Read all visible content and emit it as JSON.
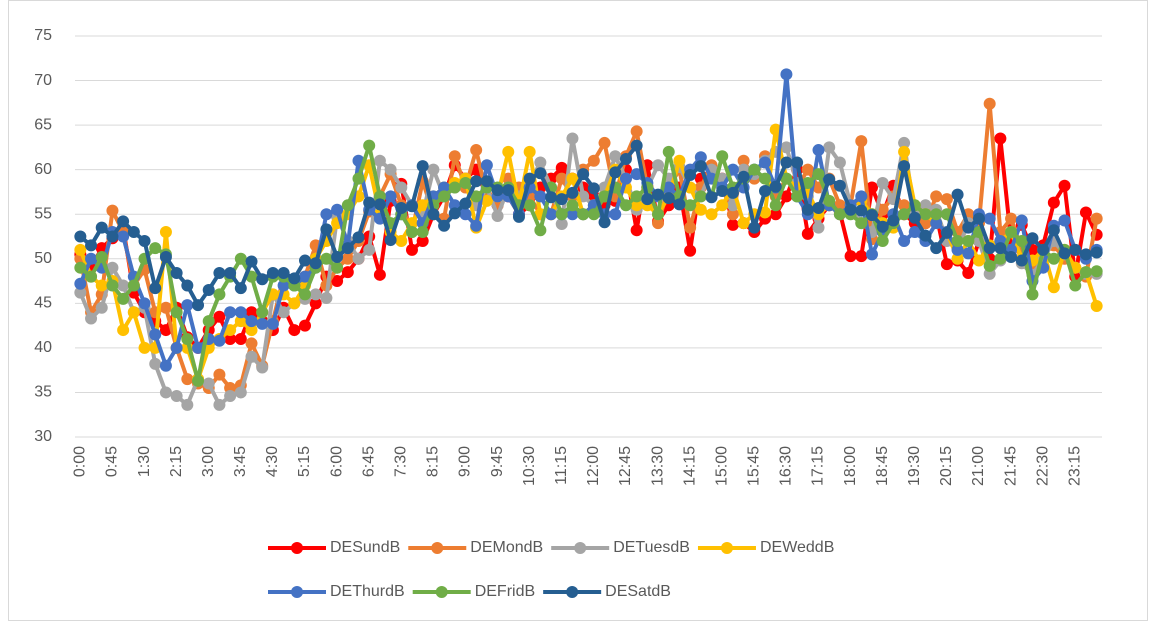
{
  "chart_data": {
    "type": "line",
    "categories": [
      "0:00",
      null,
      null,
      "0:45",
      null,
      null,
      "1:30",
      null,
      null,
      "2:15",
      null,
      null,
      "3:00",
      null,
      null,
      "3:45",
      null,
      null,
      "4:30",
      null,
      null,
      "5:15",
      null,
      null,
      "6:00",
      null,
      null,
      "6:45",
      null,
      null,
      "7:30",
      null,
      null,
      "8:15",
      null,
      null,
      "9:00",
      null,
      null,
      "9:45",
      null,
      null,
      "10:30",
      null,
      null,
      "11:15",
      null,
      null,
      "12:00",
      null,
      null,
      "12:45",
      null,
      null,
      "13:30",
      null,
      null,
      "14:15",
      null,
      null,
      "15:00",
      null,
      null,
      "15:45",
      null,
      null,
      "16:30",
      null,
      null,
      "17:15",
      null,
      null,
      "18:00",
      null,
      null,
      "18:45",
      null,
      null,
      "19:30",
      null,
      null,
      "20:15",
      null,
      null,
      "21:00",
      null,
      null,
      "21:45",
      null,
      null,
      "22:30",
      null,
      null,
      "23:15",
      null,
      null
    ],
    "series": [
      {
        "name": "DESundB",
        "color": "#ff0000",
        "values": [
          50.5,
          49.0,
          51.2,
          52.3,
          53.5,
          46.2,
          44.0,
          43.0,
          42.0,
          44.5,
          41.2,
          40.0,
          42.0,
          43.5,
          41.0,
          41.0,
          44.0,
          43.0,
          42.0,
          44.5,
          42.0,
          42.5,
          45.0,
          48.0,
          47.5,
          48.5,
          50.0,
          52.5,
          48.2,
          56.5,
          58.4,
          51.0,
          52.0,
          55.0,
          57.0,
          60.5,
          59.0,
          60.0,
          57.0,
          56.0,
          57.0,
          55.0,
          56.0,
          58.0,
          59.0,
          60.2,
          59.0,
          58.0,
          57.0,
          56.0,
          56.5,
          60.0,
          53.2,
          60.5,
          54.2,
          56.0,
          58.0,
          50.9,
          59.0,
          60.0,
          59.0,
          53.8,
          54.0,
          53.0,
          54.5,
          55.0,
          57.0,
          60.0,
          52.8,
          54.5,
          56.0,
          55.2,
          50.3,
          50.3,
          58.0,
          55.0,
          58.2,
          55.0,
          54.0,
          54.0,
          55.0,
          49.4,
          49.8,
          48.4,
          52.0,
          50.0,
          63.5,
          52.0,
          53.8,
          51.0,
          51.5,
          56.3,
          58.2,
          48.0,
          55.2,
          52.7
        ]
      },
      {
        "name": "DEMondB",
        "color": "#ed7d31",
        "values": [
          50.0,
          44.0,
          46.0,
          55.4,
          53.0,
          47.0,
          48.8,
          44.0,
          44.5,
          40.0,
          36.5,
          36.0,
          35.5,
          37.0,
          35.5,
          35.8,
          40.5,
          38.0,
          43.0,
          48.0,
          47.5,
          48.0,
          51.5,
          47.0,
          49.0,
          50.0,
          52.0,
          55.3,
          57.0,
          59.5,
          56.0,
          53.0,
          58.7,
          55.0,
          54.5,
          61.5,
          58.0,
          62.2,
          57.0,
          56.0,
          59.0,
          58.0,
          57.0,
          55.0,
          55.0,
          59.0,
          57.0,
          60.0,
          61.0,
          63.0,
          57.0,
          61.5,
          64.3,
          58.0,
          54.0,
          58.0,
          60.0,
          53.5,
          58.0,
          60.5,
          58.0,
          55.0,
          61.0,
          59.0,
          61.5,
          57.0,
          59.0,
          58.0,
          60.0,
          58.0,
          59.0,
          56.0,
          56.0,
          63.2,
          52.2,
          55.5,
          57.0,
          56.0,
          55.0,
          54.0,
          57.0,
          56.7,
          53.0,
          55.0,
          54.0,
          67.4,
          53.0,
          54.5,
          51.0,
          49.0,
          50.5,
          51.5,
          50.0,
          49.0,
          48.0,
          54.5
        ]
      },
      {
        "name": "DETuesdB",
        "color": "#a5a5a5",
        "values": [
          46.2,
          43.3,
          44.5,
          49.0,
          47.0,
          44.0,
          44.5,
          38.2,
          35.0,
          34.6,
          33.6,
          36.5,
          36.0,
          33.6,
          34.6,
          35.0,
          39.0,
          37.8,
          46.0,
          44.0,
          45.0,
          45.5,
          46.0,
          45.6,
          54.7,
          52.0,
          50.0,
          51.0,
          61.0,
          60.0,
          58.0,
          56.0,
          55.0,
          60.0,
          57.0,
          58.0,
          59.0,
          56.0,
          58.0,
          54.8,
          58.0,
          57.0,
          58.5,
          60.8,
          58.0,
          53.9,
          63.5,
          57.0,
          56.0,
          58.0,
          61.5,
          59.0,
          55.5,
          58.0,
          60.5,
          59.0,
          60.3,
          58.0,
          57.0,
          60.0,
          59.0,
          56.0,
          60.0,
          59.5,
          61.0,
          62.0,
          62.5,
          58.5,
          57.0,
          53.5,
          62.5,
          60.8,
          56.0,
          54.0,
          53.0,
          58.5,
          56.7,
          63.0,
          55.0,
          56.0,
          55.5,
          52.0,
          51.0,
          54.0,
          52.0,
          48.3,
          49.8,
          51.0,
          49.5,
          48.2,
          50.0,
          52.0,
          50.5,
          49.0,
          48.3,
          48.3
        ]
      },
      {
        "name": "DEWeddB",
        "color": "#ffc000",
        "values": [
          51.0,
          48.0,
          47.0,
          47.5,
          42.0,
          44.0,
          40.0,
          40.0,
          53.0,
          40.0,
          40.0,
          36.5,
          40.0,
          41.0,
          42.0,
          43.0,
          42.0,
          44.0,
          46.0,
          46.0,
          45.0,
          47.0,
          50.0,
          52.0,
          54.0,
          55.0,
          57.0,
          60.5,
          55.0,
          53.0,
          52.0,
          54.0,
          56.0,
          57.0,
          58.0,
          58.5,
          59.0,
          53.5,
          56.5,
          57.0,
          62.0,
          56.0,
          62.0,
          55.0,
          55.0,
          57.0,
          59.0,
          55.0,
          56.0,
          57.0,
          60.0,
          58.0,
          56.0,
          56.0,
          55.0,
          57.0,
          61.0,
          58.0,
          55.5,
          55.0,
          56.0,
          58.0,
          54.0,
          55.0,
          55.2,
          64.5,
          59.0,
          58.0,
          57.5,
          55.0,
          56.0,
          55.0,
          56.0,
          56.5,
          55.0,
          54.0,
          53.5,
          62.0,
          56.0,
          55.0,
          54.0,
          53.0,
          50.0,
          52.0,
          49.8,
          51.5,
          52.0,
          53.0,
          50.0,
          49.8,
          51.0,
          46.8,
          51.0,
          49.0,
          48.5,
          44.7
        ]
      },
      {
        "name": "DEThurdB",
        "color": "#4472c4",
        "values": [
          47.2,
          50.0,
          49.0,
          53.0,
          52.5,
          48.0,
          45.0,
          41.5,
          38.0,
          40.0,
          44.8,
          40.0,
          41.0,
          40.8,
          44.0,
          44.0,
          43.0,
          42.7,
          42.7,
          47.0,
          47.0,
          48.0,
          49.0,
          55.0,
          55.5,
          51.5,
          61.0,
          55.5,
          54.5,
          57.0,
          55.0,
          56.0,
          54.0,
          57.0,
          58.0,
          56.0,
          55.0,
          53.7,
          60.5,
          57.0,
          57.0,
          55.0,
          58.0,
          57.0,
          55.0,
          55.0,
          55.0,
          55.0,
          56.0,
          55.0,
          55.0,
          59.0,
          59.5,
          58.5,
          57.0,
          58.0,
          57.0,
          60.0,
          61.4,
          59.0,
          58.0,
          60.0,
          58.0,
          60.0,
          60.8,
          58.0,
          70.7,
          57.0,
          55.0,
          62.2,
          56.0,
          55.0,
          56.0,
          57.0,
          50.5,
          53.0,
          55.0,
          52.0,
          53.0,
          52.0,
          54.0,
          53.0,
          51.0,
          50.6,
          55.0,
          54.5,
          52.0,
          51.0,
          54.3,
          47.5,
          49.0,
          53.7,
          54.3,
          51.0,
          50.0,
          51.0
        ]
      },
      {
        "name": "DEFridB",
        "color": "#70ad47",
        "values": [
          49.0,
          48.0,
          50.2,
          47.0,
          45.5,
          47.0,
          50.0,
          51.2,
          50.5,
          44.0,
          41.0,
          36.3,
          43.0,
          46.0,
          48.0,
          50.0,
          48.0,
          44.0,
          48.0,
          48.0,
          47.0,
          46.0,
          49.0,
          50.0,
          49.0,
          56.0,
          59.0,
          62.7,
          57.0,
          54.0,
          55.0,
          53.0,
          53.0,
          56.0,
          57.0,
          58.0,
          58.5,
          57.0,
          58.0,
          58.0,
          58.0,
          56.0,
          56.0,
          53.2,
          58.0,
          55.0,
          56.0,
          55.0,
          55.0,
          57.0,
          58.0,
          56.0,
          57.0,
          58.0,
          55.0,
          62.0,
          57.0,
          56.0,
          57.0,
          57.0,
          61.5,
          58.0,
          59.0,
          60.0,
          59.0,
          56.0,
          59.0,
          57.0,
          58.5,
          59.5,
          56.5,
          55.0,
          55.0,
          54.0,
          55.0,
          52.0,
          54.0,
          55.0,
          56.0,
          55.0,
          55.0,
          55.0,
          52.0,
          52.0,
          53.0,
          49.2,
          50.0,
          53.0,
          52.0,
          46.0,
          51.0,
          50.0,
          51.0,
          47.0,
          48.5,
          48.6
        ]
      },
      {
        "name": "DESatdB",
        "color": "#255e91",
        "values": [
          52.5,
          51.5,
          53.5,
          52.5,
          54.2,
          53.0,
          52.0,
          46.7,
          50.2,
          48.4,
          47.0,
          44.8,
          46.5,
          48.4,
          48.4,
          46.7,
          49.7,
          47.7,
          48.4,
          48.4,
          47.8,
          49.8,
          49.5,
          53.3,
          50.2,
          51.2,
          52.4,
          56.3,
          56.1,
          52.1,
          55.7,
          55.9,
          60.4,
          55.0,
          53.7,
          55.1,
          56.2,
          58.7,
          58.7,
          57.7,
          57.7,
          54.7,
          59.0,
          59.6,
          56.9,
          56.7,
          57.4,
          59.5,
          57.9,
          54.1,
          59.7,
          61.2,
          62.7,
          56.7,
          57.2,
          56.8,
          56.1,
          59.4,
          60.4,
          56.9,
          57.6,
          57.4,
          59.2,
          53.5,
          57.6,
          58.1,
          60.8,
          60.8,
          55.5,
          55.7,
          58.9,
          58.2,
          55.5,
          55.4,
          54.9,
          53.6,
          54.3,
          60.4,
          54.6,
          52.6,
          51.2,
          52.9,
          57.2,
          53.5,
          54.5,
          51.2,
          51.2,
          50.2,
          49.8,
          52.3,
          51.0,
          53.2,
          50.6,
          51.0,
          50.5,
          50.7
        ]
      }
    ],
    "ylim": [
      30,
      75
    ],
    "yticks": [
      30,
      35,
      40,
      45,
      50,
      55,
      60,
      65,
      70,
      75
    ],
    "grid": true,
    "legend": "bottom"
  }
}
